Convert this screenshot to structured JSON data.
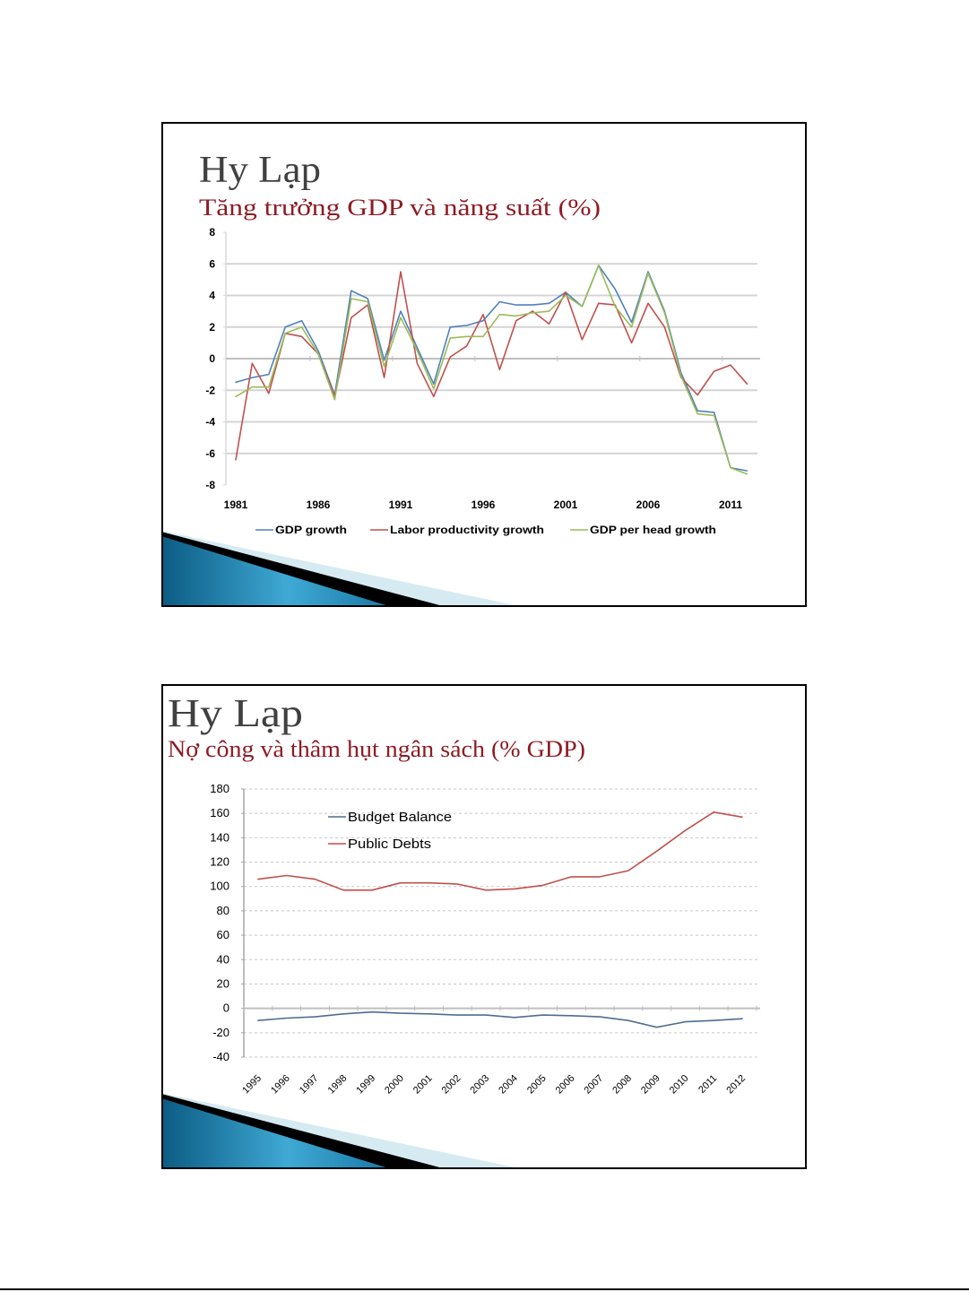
{
  "slides": [
    {
      "heading": "Hy Lạp"
    },
    {
      "heading": "Hy Lạp"
    }
  ],
  "theme": {
    "heading_color": "#404040",
    "subheading_color": "#8E1B24",
    "decor_blue": "#2A8DBE",
    "decor_light_blue": "#D6EAF2",
    "decor_black": "#000000"
  },
  "chart_data": [
    {
      "type": "line",
      "title": "Tăng trưởng GDP và năng suất (%)",
      "xlabel": "",
      "ylabel": "",
      "x": [
        1981,
        1982,
        1983,
        1984,
        1985,
        1986,
        1987,
        1988,
        1989,
        1990,
        1991,
        1992,
        1993,
        1994,
        1995,
        1996,
        1997,
        1998,
        1999,
        2000,
        2001,
        2002,
        2003,
        2004,
        2005,
        2006,
        2007,
        2008,
        2009,
        2010,
        2011,
        2012
      ],
      "xtick_labels": [
        "1981",
        "1986",
        "1991",
        "1996",
        "2001",
        "2006",
        "2011"
      ],
      "yticks": [
        8,
        6,
        4,
        2,
        0,
        -2,
        -4,
        -6,
        -8
      ],
      "ylim": [
        -8,
        8
      ],
      "grid": true,
      "legend_position": "bottom",
      "series": [
        {
          "name": "GDP growth",
          "color": "#4F81BD",
          "values": [
            -1.5,
            -1.2,
            -1.0,
            2.0,
            2.4,
            0.5,
            -2.3,
            4.3,
            3.8,
            -0.1,
            3.0,
            0.7,
            -1.6,
            2.0,
            2.1,
            2.4,
            3.6,
            3.4,
            3.4,
            3.5,
            4.2,
            3.3,
            5.9,
            4.4,
            2.3,
            5.5,
            3.0,
            -0.9,
            -3.3,
            -3.4,
            -6.9,
            -7.1
          ]
        },
        {
          "name": "Labor productivity growth",
          "color": "#C0504D",
          "values": [
            -6.4,
            -0.3,
            -2.2,
            1.6,
            1.4,
            0.3,
            -2.4,
            2.6,
            3.4,
            -1.2,
            5.5,
            -0.3,
            -2.4,
            0.1,
            0.8,
            2.8,
            -0.7,
            2.4,
            3.0,
            2.2,
            4.2,
            1.2,
            3.5,
            3.4,
            1.0,
            3.5,
            2.0,
            -1.2,
            -2.3,
            -0.8,
            -0.4,
            -1.6
          ]
        },
        {
          "name": "GDP per head growth",
          "color": "#9BBB59",
          "values": [
            -2.4,
            -1.8,
            -1.8,
            1.6,
            2.0,
            0.3,
            -2.6,
            3.8,
            3.6,
            -0.5,
            2.6,
            0.5,
            -1.9,
            1.3,
            1.4,
            1.4,
            2.8,
            2.7,
            2.9,
            3.0,
            4.0,
            3.3,
            5.9,
            3.3,
            2.0,
            5.4,
            2.9,
            -1.1,
            -3.5,
            -3.6,
            -6.9,
            -7.3
          ]
        }
      ]
    },
    {
      "type": "line",
      "title": "Nợ công và thâm hụt ngân sách (% GDP)",
      "xlabel": "",
      "ylabel": "",
      "categories": [
        "1995",
        "1996",
        "1997",
        "1998",
        "1999",
        "2000",
        "2001",
        "2002",
        "2003",
        "2004",
        "2005",
        "2006",
        "2007",
        "2008",
        "2009",
        "2010",
        "2011",
        "2012"
      ],
      "yticks": [
        180,
        160,
        140,
        120,
        100,
        80,
        60,
        40,
        20,
        0,
        -20,
        -40
      ],
      "ylim": [
        -40,
        180
      ],
      "grid": true,
      "legend_position": "top-left",
      "series": [
        {
          "name": "Budget Balance",
          "color": "#4F6D8F",
          "values": [
            -10,
            -8,
            -7,
            -4.5,
            -3,
            -4,
            -4.5,
            -5.5,
            -5.5,
            -7.5,
            -5.5,
            -6,
            -7,
            -10,
            -15.5,
            -11,
            -10,
            -8.5
          ]
        },
        {
          "name": "Public Debts",
          "color": "#C0504D",
          "values": [
            106,
            109,
            106,
            97,
            97,
            103,
            103,
            102,
            97,
            98,
            101,
            108,
            108,
            113,
            129,
            146,
            161,
            157
          ]
        }
      ]
    }
  ]
}
